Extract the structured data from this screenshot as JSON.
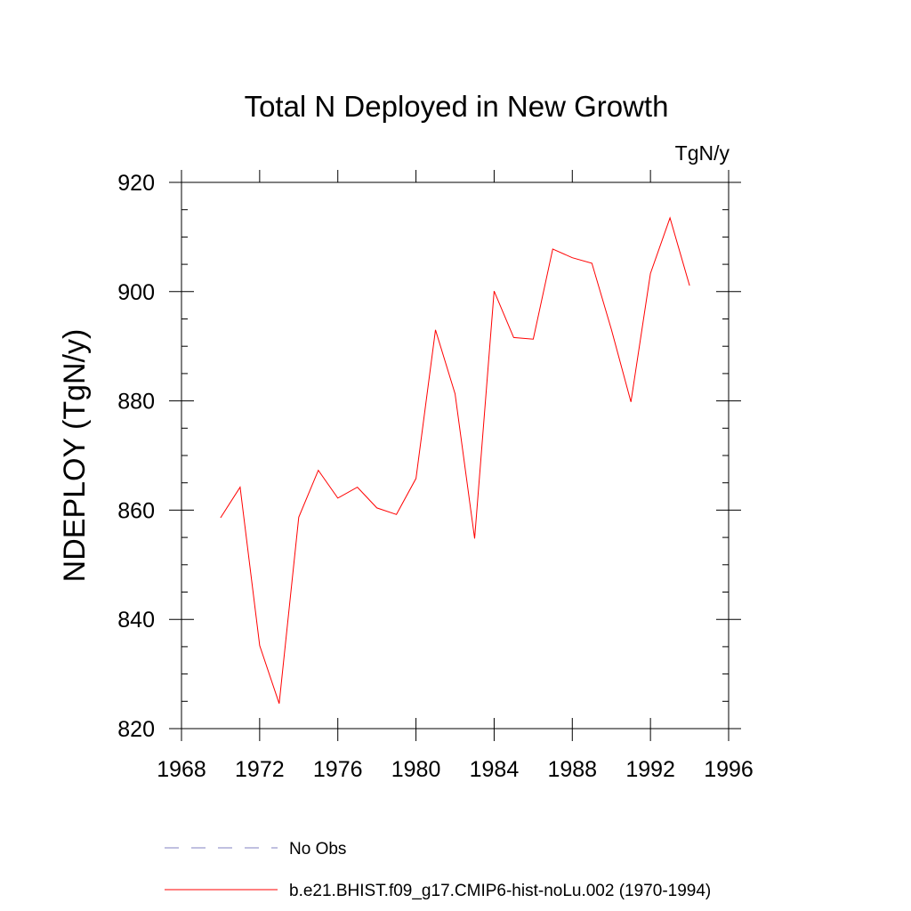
{
  "chart_data": {
    "type": "line",
    "title": "Total N Deployed in New Growth",
    "units_label": "TgN/y",
    "ylabel": "NDEPLOY  (TgN/y)",
    "xlabel": "",
    "xlim": [
      1968,
      1996
    ],
    "ylim": [
      820,
      920
    ],
    "x_ticks": [
      1968,
      1972,
      1976,
      1980,
      1984,
      1988,
      1992,
      1996
    ],
    "y_ticks": [
      820,
      840,
      860,
      880,
      900,
      920
    ],
    "x_tick_labels": [
      "1968",
      "1972",
      "1976",
      "1980",
      "1984",
      "1988",
      "1992",
      "1996"
    ],
    "y_tick_labels": [
      "820",
      "840",
      "860",
      "880",
      "900",
      "920"
    ],
    "grid": false,
    "legend_position": "bottom",
    "series": [
      {
        "name": "b.e21.BHIST.f09_g17.CMIP6-hist-noLu.002 (1970-1994)",
        "color": "#ff0000",
        "style": "solid",
        "x": [
          1970,
          1971,
          1972,
          1973,
          1974,
          1975,
          1976,
          1977,
          1978,
          1979,
          1980,
          1981,
          1982,
          1983,
          1984,
          1985,
          1986,
          1987,
          1988,
          1989,
          1990,
          1991,
          1992,
          1993,
          1994
        ],
        "y": [
          858.6,
          864.2,
          835.2,
          824.6,
          858.7,
          867.3,
          862.2,
          864.2,
          860.4,
          859.2,
          865.8,
          893.0,
          881.3,
          854.8,
          900.1,
          891.6,
          891.3,
          907.8,
          906.2,
          905.2,
          893.1,
          879.8,
          903.3,
          913.5,
          901.1
        ]
      }
    ],
    "legend": [
      {
        "label": "No Obs",
        "color": "#8080c0",
        "style": "dashed"
      },
      {
        "label": "b.e21.BHIST.f09_g17.CMIP6-hist-noLu.002 (1970-1994)",
        "color": "#ff0000",
        "style": "solid"
      }
    ]
  }
}
